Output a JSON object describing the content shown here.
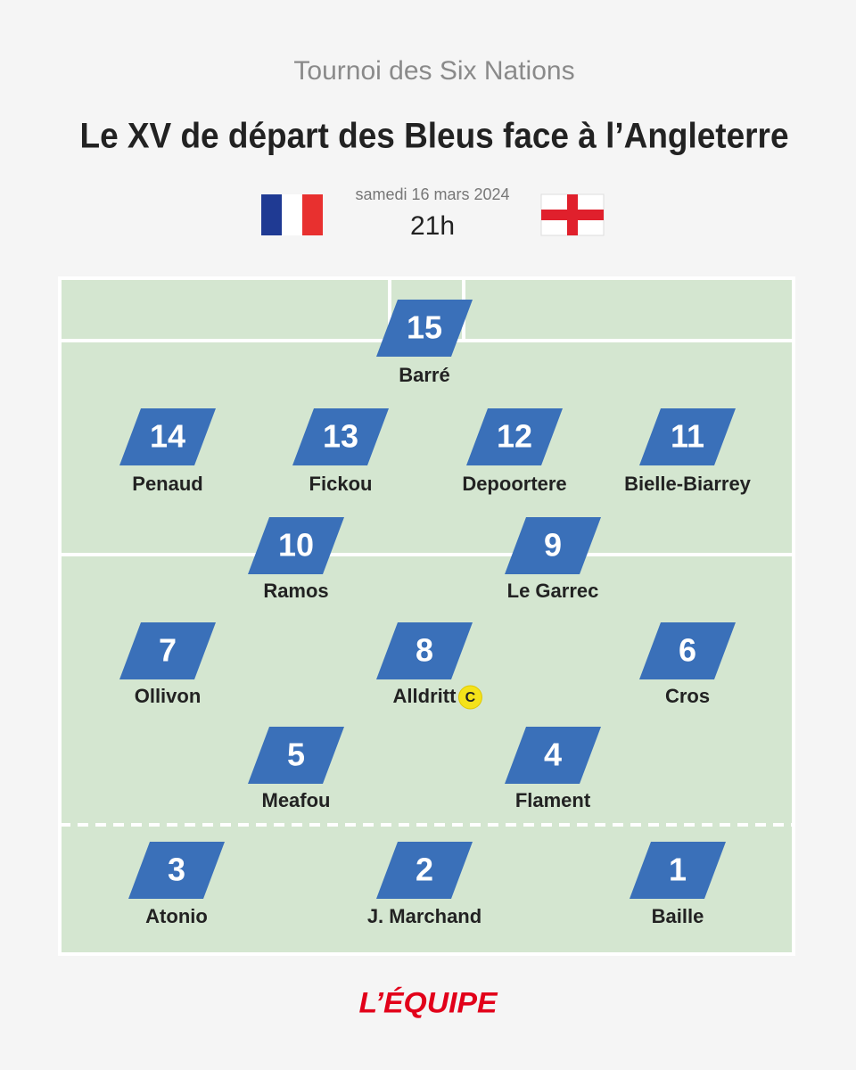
{
  "header": {
    "subtitle": "Tournoi des Six Nations",
    "title": "Le XV de départ des Bleus face à l’Angleterre",
    "date": "samedi 16 mars 2024",
    "time": "21h"
  },
  "players": [
    {
      "number": 15,
      "name": "Barré"
    },
    {
      "number": 14,
      "name": "Penaud"
    },
    {
      "number": 13,
      "name": "Fickou"
    },
    {
      "number": 12,
      "name": "Depoortere"
    },
    {
      "number": 11,
      "name": "Bielle-Biarrey"
    },
    {
      "number": 10,
      "name": "Ramos"
    },
    {
      "number": 9,
      "name": "Le Garrec"
    },
    {
      "number": 7,
      "name": "Ollivon"
    },
    {
      "number": 8,
      "name": "Alldritt",
      "captain": "C"
    },
    {
      "number": 6,
      "name": "Cros"
    },
    {
      "number": 5,
      "name": "Meafou"
    },
    {
      "number": 4,
      "name": "Flament"
    },
    {
      "number": 3,
      "name": "Atonio"
    },
    {
      "number": 2,
      "name": "J. Marchand"
    },
    {
      "number": 1,
      "name": "Baille"
    }
  ],
  "footer": {
    "logo": "L’ÉQUIPE"
  }
}
